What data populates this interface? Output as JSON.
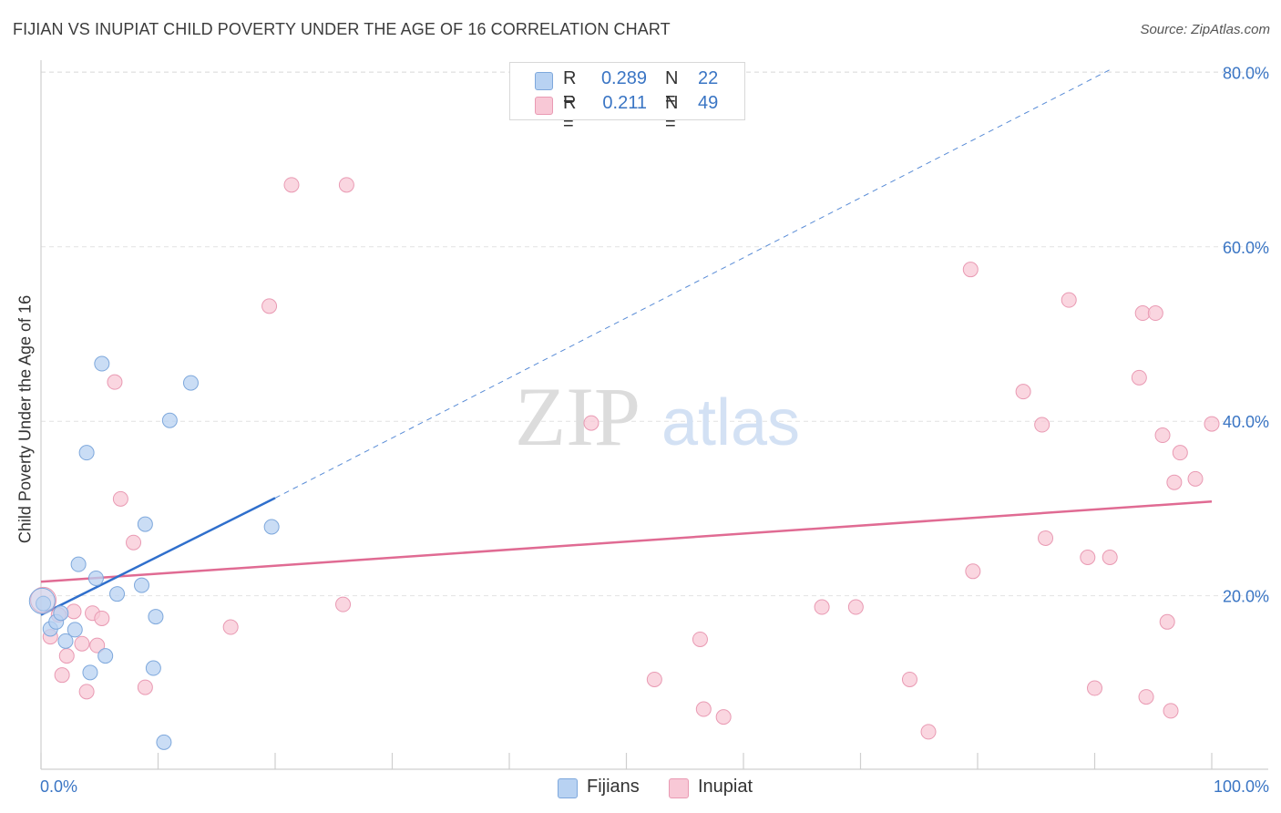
{
  "title": "FIJIAN VS INUPIAT CHILD POVERTY UNDER THE AGE OF 16 CORRELATION CHART",
  "source": "Source: ZipAtlas.com",
  "watermark": {
    "zip": "ZIP",
    "atlas": "atlas"
  },
  "colors": {
    "fijians_fill": "#b8d2f2",
    "fijians_stroke": "#7ea8dc",
    "fijians_line": "#2f6fcc",
    "inupiat_fill": "#f8c8d6",
    "inupiat_stroke": "#e99ab3",
    "inupiat_line": "#e06b93",
    "value_text": "#3a75c4",
    "grid": "#e2e2e2"
  },
  "legend_top": {
    "fijians": {
      "r_label": "R =",
      "r_value": "0.289",
      "n_label": "N =",
      "n_value": "22"
    },
    "inupiat": {
      "r_label": "R =",
      "r_value": "0.211",
      "n_label": "N =",
      "n_value": "49"
    }
  },
  "legend_bottom": {
    "fijians": "Fijians",
    "inupiat": "Inupiat"
  },
  "chart_data": {
    "type": "scatter",
    "title": "FIJIAN VS INUPIAT CHILD POVERTY UNDER THE AGE OF 16 CORRELATION CHART",
    "xlabel": "",
    "ylabel": "Child Poverty Under the Age of 16",
    "xlim": [
      0,
      100
    ],
    "ylim": [
      0,
      82
    ],
    "x_tick_labels": [
      "0.0%",
      "100.0%"
    ],
    "y_ticks": [
      20,
      40,
      60,
      80
    ],
    "y_tick_labels": [
      "20.0%",
      "40.0%",
      "60.0%",
      "80.0%"
    ],
    "grid": true,
    "legend_position": "top-center",
    "series": [
      {
        "name": "Fijians",
        "r": 0.289,
        "n": 22,
        "points": [
          [
            0.2,
            19.1
          ],
          [
            0.8,
            16.2
          ],
          [
            1.3,
            17.0
          ],
          [
            1.7,
            18.0
          ],
          [
            2.1,
            14.8
          ],
          [
            2.9,
            16.1
          ],
          [
            3.2,
            23.6
          ],
          [
            3.9,
            36.4
          ],
          [
            4.2,
            11.2
          ],
          [
            4.7,
            22.0
          ],
          [
            5.2,
            46.6
          ],
          [
            5.5,
            13.1
          ],
          [
            6.5,
            20.2
          ],
          [
            8.6,
            21.2
          ],
          [
            8.9,
            28.2
          ],
          [
            9.6,
            11.7
          ],
          [
            9.8,
            17.6
          ],
          [
            10.5,
            3.2
          ],
          [
            11.0,
            40.1
          ],
          [
            12.8,
            44.4
          ],
          [
            19.7,
            27.9
          ],
          [
            0.1,
            19.4
          ]
        ],
        "trend": {
          "x1": 0,
          "y1": 17.8,
          "x2": 20,
          "y2": 31.2,
          "dashed_to_x": 91.3,
          "dashed_to_y": 80.3
        }
      },
      {
        "name": "Inupiat",
        "r": 0.211,
        "n": 49,
        "points": [
          [
            0.2,
            19.5
          ],
          [
            0.8,
            15.3
          ],
          [
            1.5,
            17.8
          ],
          [
            1.8,
            10.9
          ],
          [
            2.2,
            13.1
          ],
          [
            2.8,
            18.2
          ],
          [
            3.5,
            14.5
          ],
          [
            3.9,
            9.0
          ],
          [
            4.4,
            18.0
          ],
          [
            4.8,
            14.3
          ],
          [
            5.2,
            17.4
          ],
          [
            6.3,
            44.5
          ],
          [
            6.8,
            31.1
          ],
          [
            7.9,
            26.1
          ],
          [
            8.9,
            9.5
          ],
          [
            16.2,
            16.4
          ],
          [
            19.5,
            53.2
          ],
          [
            21.4,
            67.1
          ],
          [
            25.8,
            19.0
          ],
          [
            26.1,
            67.1
          ],
          [
            47.0,
            39.8
          ],
          [
            52.4,
            10.4
          ],
          [
            56.3,
            15.0
          ],
          [
            56.6,
            7.0
          ],
          [
            58.3,
            6.1
          ],
          [
            66.7,
            18.7
          ],
          [
            69.6,
            18.7
          ],
          [
            74.2,
            10.4
          ],
          [
            75.8,
            4.4
          ],
          [
            79.4,
            57.4
          ],
          [
            79.6,
            22.8
          ],
          [
            83.9,
            43.4
          ],
          [
            85.5,
            39.6
          ],
          [
            85.8,
            26.6
          ],
          [
            87.8,
            53.9
          ],
          [
            89.4,
            24.4
          ],
          [
            90.0,
            9.4
          ],
          [
            91.3,
            24.4
          ],
          [
            93.8,
            45.0
          ],
          [
            94.1,
            52.4
          ],
          [
            94.4,
            8.4
          ],
          [
            95.2,
            52.4
          ],
          [
            95.8,
            38.4
          ],
          [
            96.2,
            17.0
          ],
          [
            96.5,
            6.8
          ],
          [
            96.8,
            33.0
          ],
          [
            97.3,
            36.4
          ],
          [
            98.6,
            33.4
          ],
          [
            100.0,
            39.7
          ]
        ],
        "trend": {
          "x1": 0,
          "y1": 21.6,
          "x2": 100,
          "y2": 30.8
        }
      }
    ]
  }
}
